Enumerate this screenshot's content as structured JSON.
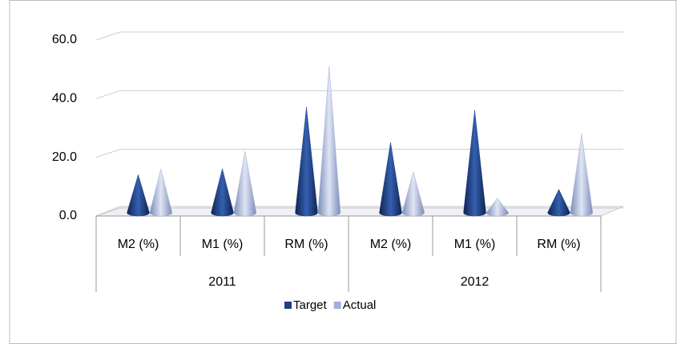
{
  "chart_data": {
    "type": "cone3d",
    "groups": [
      {
        "name": "2011",
        "categories": [
          "M2 (%)",
          "M1 (%)",
          "RM (%)"
        ]
      },
      {
        "name": "2012",
        "categories": [
          "M2 (%)",
          "M1 (%)",
          "RM (%)"
        ]
      }
    ],
    "series": [
      {
        "name": "Target",
        "color": "#1f3f80",
        "values": [
          13,
          15,
          36,
          24,
          35,
          8
        ]
      },
      {
        "name": "Actual",
        "color": "#a3b1d6",
        "values": [
          15,
          21,
          50,
          14,
          5,
          27
        ]
      }
    ],
    "ylim": [
      0,
      60
    ],
    "yticks": [
      {
        "value": 0,
        "label": "0.0"
      },
      {
        "value": 20,
        "label": "20.0"
      },
      {
        "value": 40,
        "label": "40.0"
      },
      {
        "value": 60,
        "label": "60.0"
      }
    ],
    "grid": true,
    "legend": "bottom"
  }
}
